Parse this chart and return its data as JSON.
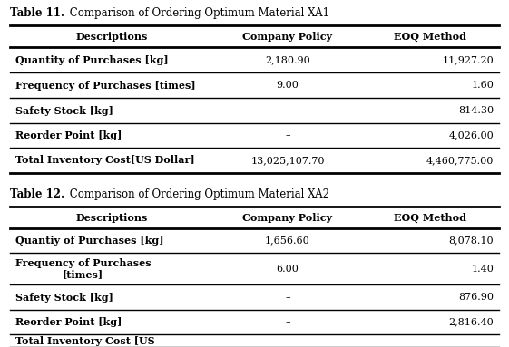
{
  "table1_title_bold": "Table 11.",
  "table1_title_rest": " Comparison of Ordering Optimum Material XA1",
  "table1_headers": [
    "Descriptions",
    "Company Policy",
    "EOQ Method"
  ],
  "table1_rows": [
    [
      "Quantity of Purchases [kg]",
      "2,180.90",
      "11,927.20"
    ],
    [
      "Frequency of Purchases [times]",
      "9.00",
      "1.60"
    ],
    [
      "Safety Stock [kg]",
      "–",
      "814.30"
    ],
    [
      "Reorder Point [kg]",
      "–",
      "4,026.00"
    ],
    [
      "Total Inventory Cost[US Dollar]",
      "13,025,107.70",
      "4,460,775.00"
    ]
  ],
  "table2_title_bold": "Table 12.",
  "table2_title_rest": " Comparison of Ordering Optimum Material XA2",
  "table2_headers": [
    "Descriptions",
    "Company Policy",
    "EOQ Method"
  ],
  "table2_rows": [
    [
      "Quantiy of Purchases [kg]",
      "1,656.60",
      "8,078.10"
    ],
    [
      "Frequency of Purchases\n[times]",
      "6.00",
      "1.40"
    ],
    [
      "Safety Stock [kg]",
      "–",
      "876.90"
    ],
    [
      "Reorder Point [kg]",
      "–",
      "2,816.40"
    ],
    [
      "Total Inventory Cost [US",
      "",
      ""
    ]
  ],
  "background_color": "#ffffff",
  "header_fontsize": 8.0,
  "body_fontsize": 8.0,
  "title_fontsize": 8.5
}
